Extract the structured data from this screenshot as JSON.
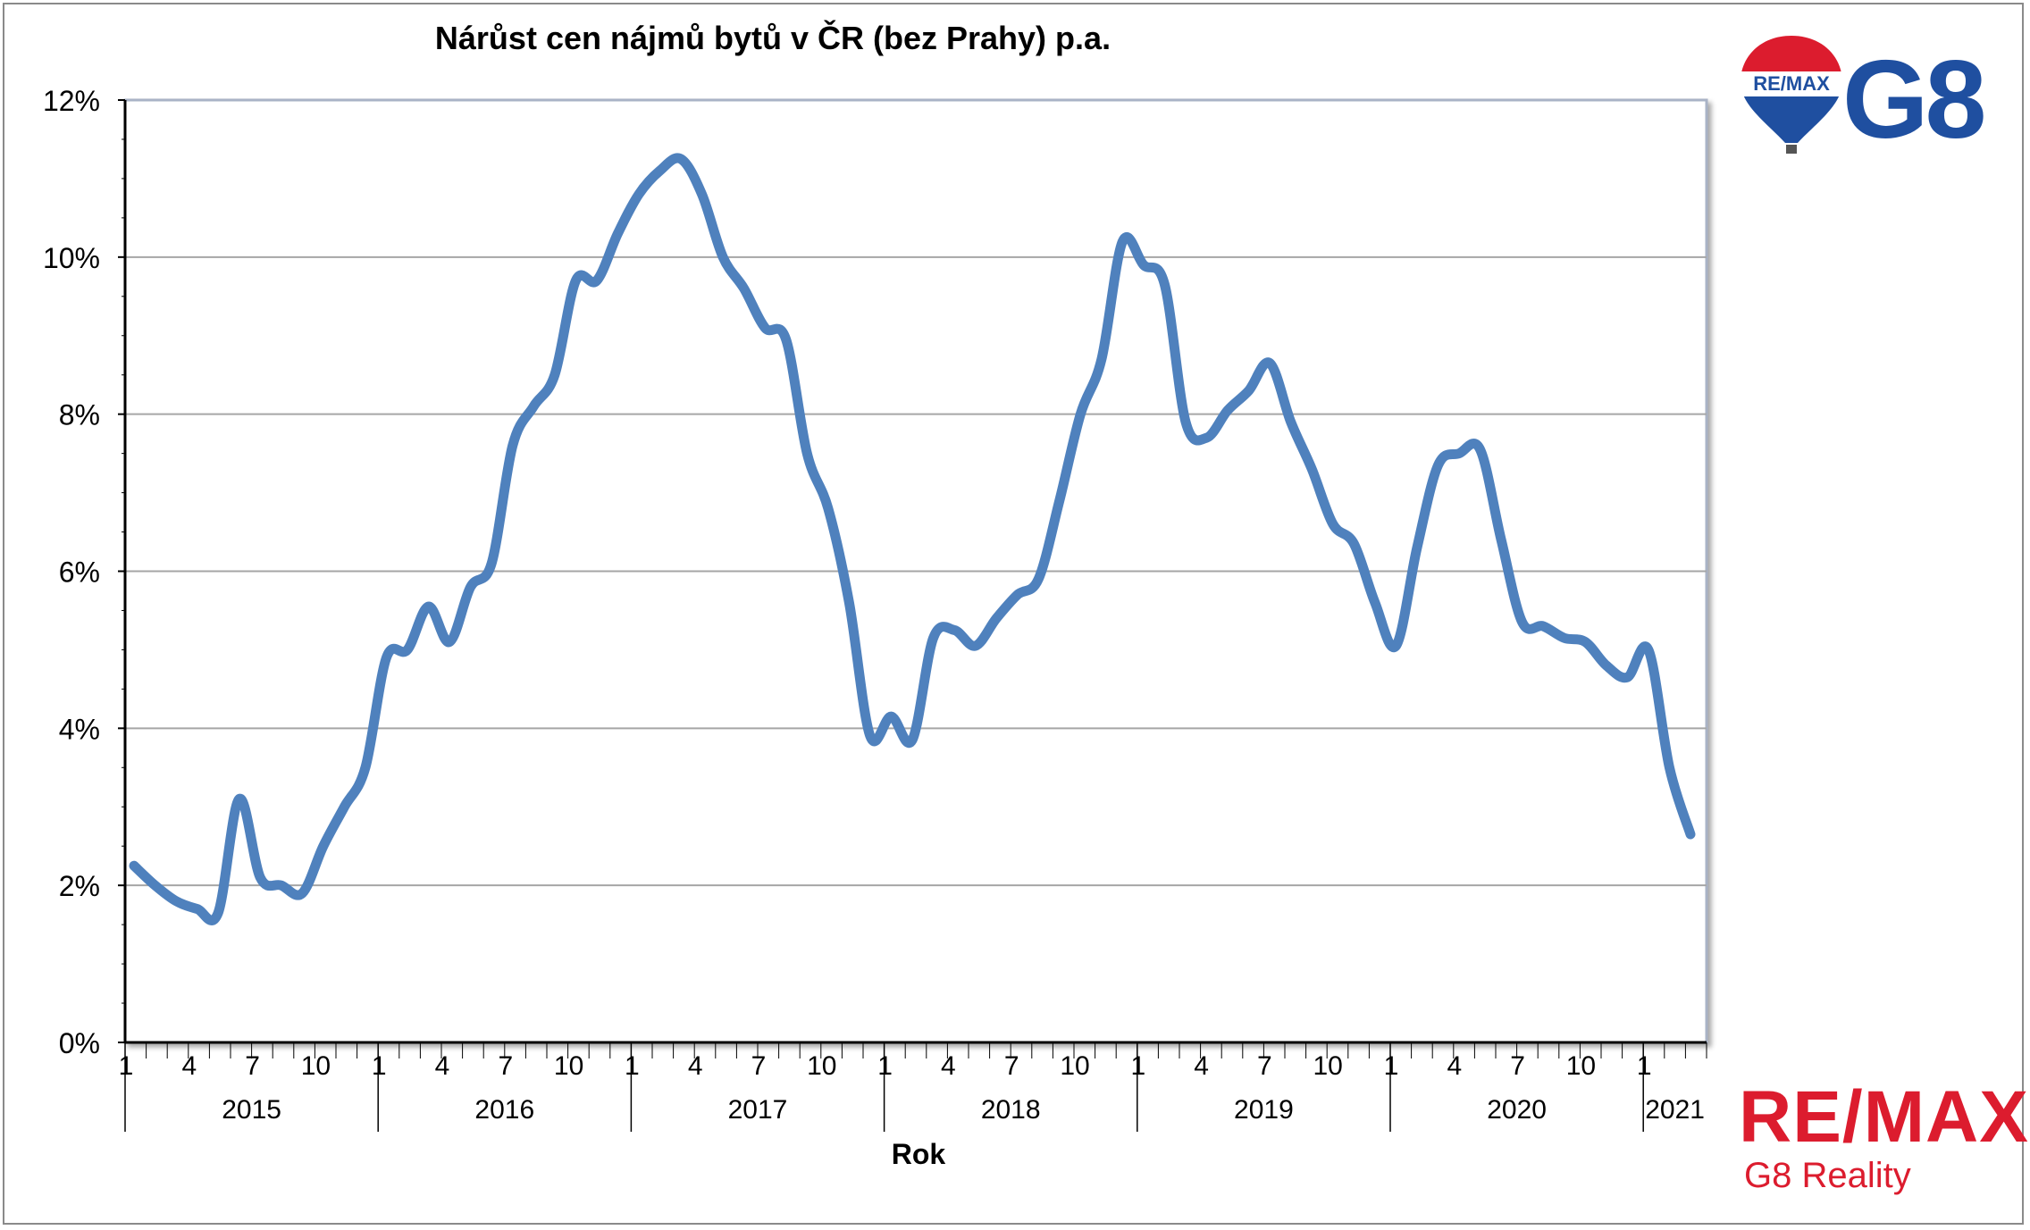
{
  "chart_data": {
    "type": "line",
    "title": "Nárůst cen nájmů bytů v ČR (bez Prahy) p.a.",
    "xlabel": "Rok",
    "ylabel": "",
    "ylim": [
      0,
      12
    ],
    "yticks": [
      "0%",
      "2%",
      "4%",
      "6%",
      "8%",
      "10%",
      "12%"
    ],
    "grid": true,
    "years": [
      "2015",
      "2016",
      "2017",
      "2018",
      "2019",
      "2020",
      "2021"
    ],
    "month_tick_labels": [
      "1",
      "4",
      "7",
      "10"
    ],
    "series": [
      {
        "color": "#4f81bd",
        "values": [
          2.25,
          2.0,
          1.8,
          1.7,
          1.65,
          3.1,
          2.1,
          2.0,
          1.9,
          2.5,
          3.0,
          3.5,
          4.9,
          5.0,
          5.55,
          5.1,
          5.8,
          6.1,
          7.6,
          8.1,
          8.5,
          9.7,
          9.7,
          10.3,
          10.8,
          11.1,
          11.25,
          10.8,
          10.0,
          9.6,
          9.1,
          8.95,
          7.5,
          6.8,
          5.6,
          3.9,
          4.15,
          3.85,
          5.15,
          5.25,
          5.05,
          5.4,
          5.7,
          5.9,
          6.9,
          8.0,
          8.7,
          10.2,
          9.9,
          9.65,
          7.9,
          7.7,
          8.05,
          8.3,
          8.65,
          7.9,
          7.3,
          6.6,
          6.35,
          5.6,
          5.05,
          6.3,
          7.35,
          7.5,
          7.55,
          6.4,
          5.35,
          5.3,
          5.15,
          5.1,
          4.8,
          4.65,
          5.0,
          3.5,
          2.65
        ]
      }
    ]
  },
  "logos": {
    "remax_balloon": "RE/MAX",
    "g8_mark": "G8",
    "remax_wordmark": "RE/MAX",
    "remax_subtitle": "G8 Reality"
  },
  "colors": {
    "line": "#4f81bd",
    "remax_red": "#dc1c2e",
    "g8_blue": "#1f4fa0"
  }
}
